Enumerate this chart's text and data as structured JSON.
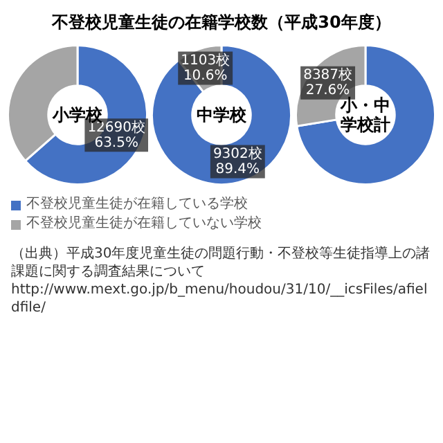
{
  "chart_data": [
    {
      "type": "donut",
      "title": "不登校児童生徒の在籍学校数（平成30年度）",
      "categories": [
        "不登校児童生徒が在籍している学校",
        "不登校児童生徒が在籍していない学校"
      ],
      "values": [
        63.5,
        36.5
      ],
      "colors": [
        "#4472c4",
        "#a5a5a5"
      ],
      "value_labels": [
        "12690校\n63.5%",
        null
      ],
      "legend": "bottom",
      "annotations": [
        "小学校",
        "（出典）平成30年度児童生徒の問題行動・不登校等生徒指導上の諸課題に関する調査結果について",
        "http://www.mext.go.jp/b_menu/houdou/31/10/__icsFiles/afieldfile/"
      ]
    },
    {
      "type": "donut",
      "values": [
        89.4,
        10.6
      ],
      "colors": [
        "#4472c4",
        "#a5a5a5"
      ],
      "value_labels": [
        "9302校\n89.4%",
        "1103校\n10.6%"
      ],
      "annotations": [
        "中学校"
      ]
    },
    {
      "type": "donut",
      "values": [
        72.4,
        27.6
      ],
      "colors": [
        "#4472c4",
        "#a5a5a5"
      ],
      "value_labels": [
        null,
        "8387校\n27.6%"
      ],
      "annotations": [
        "小・中学校計"
      ]
    }
  ]
}
